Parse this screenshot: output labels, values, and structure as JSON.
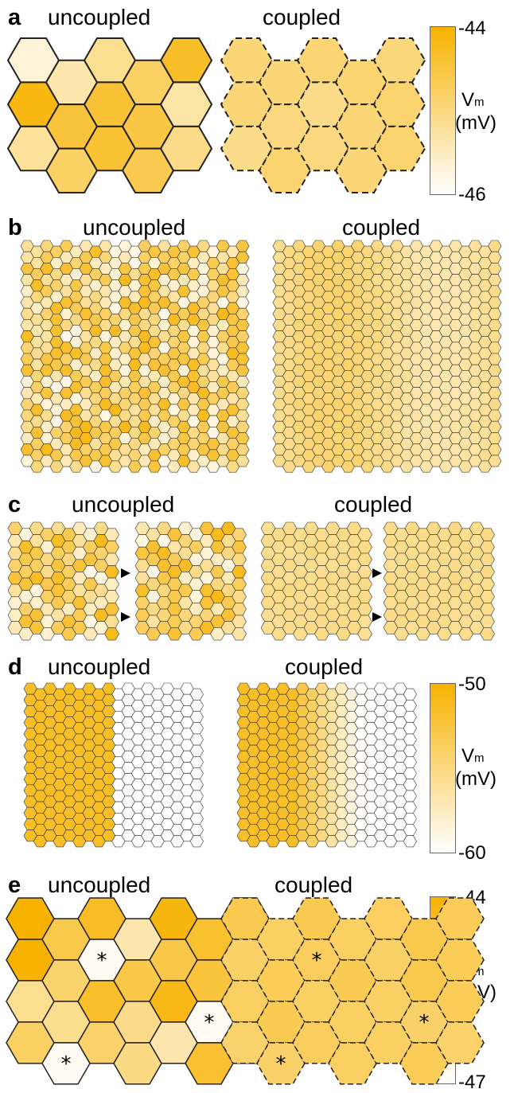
{
  "panels": [
    {
      "letter": "a",
      "left_title": "uncoupled",
      "right_title": "coupled"
    },
    {
      "letter": "b",
      "left_title": "uncoupled",
      "right_title": "coupled"
    },
    {
      "letter": "c",
      "left_title": "uncoupled",
      "right_title": "coupled"
    },
    {
      "letter": "d",
      "left_title": "uncoupled",
      "right_title": "coupled"
    },
    {
      "letter": "e",
      "left_title": "uncoupled",
      "right_title": "coupled"
    }
  ],
  "colorbars": [
    {
      "top": "-44",
      "bottom": "-46",
      "label_v": "V",
      "label_sub": "m",
      "label_unit": "(mV)"
    },
    {
      "top": "-50",
      "bottom": "-60",
      "label_v": "V",
      "label_sub": "m",
      "label_unit": "(mV)"
    },
    {
      "top": "-44",
      "bottom": "-47",
      "label_v": "V",
      "label_sub": "m",
      "label_unit": "(mV)"
    }
  ],
  "marker_symbol": "*",
  "colors": {
    "high": "#f7b200",
    "low": "#ffffff",
    "outline": "#333333"
  }
}
